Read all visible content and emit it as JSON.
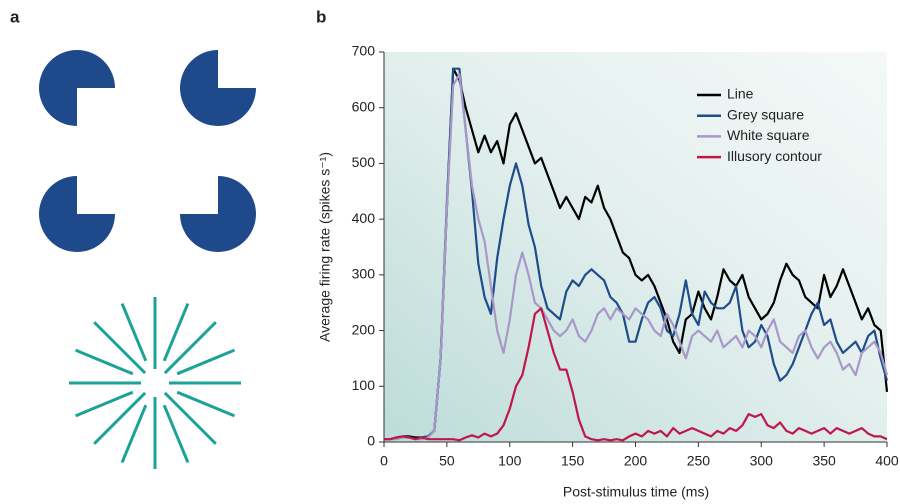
{
  "panel_labels": [
    "a",
    "b"
  ],
  "chart_data": {
    "type": "line",
    "xlabel": "Post-stimulus time (ms)",
    "ylabel": "Average firing rate (spikes s⁻¹)",
    "xlim": [
      0,
      400
    ],
    "xticks": [
      0,
      50,
      100,
      150,
      200,
      250,
      300,
      350,
      400
    ],
    "ylim": [
      0,
      700
    ],
    "yticks": [
      0,
      100,
      200,
      300,
      400,
      500,
      600,
      700
    ],
    "legend": "upper right",
    "x": [
      0,
      5,
      10,
      15,
      20,
      25,
      30,
      35,
      40,
      45,
      50,
      55,
      60,
      65,
      70,
      75,
      80,
      85,
      90,
      95,
      100,
      105,
      110,
      115,
      120,
      125,
      130,
      135,
      140,
      145,
      150,
      155,
      160,
      165,
      170,
      175,
      180,
      185,
      190,
      195,
      200,
      205,
      210,
      215,
      220,
      225,
      230,
      235,
      240,
      245,
      250,
      255,
      260,
      265,
      270,
      275,
      280,
      285,
      290,
      295,
      300,
      305,
      310,
      315,
      320,
      325,
      330,
      335,
      340,
      345,
      350,
      355,
      360,
      365,
      370,
      375,
      380,
      385,
      390,
      395,
      400
    ],
    "series": [
      {
        "name": "Line",
        "color": "#000000",
        "values": [
          5,
          5,
          8,
          10,
          10,
          8,
          8,
          10,
          20,
          150,
          420,
          670,
          650,
          600,
          560,
          520,
          550,
          520,
          540,
          500,
          570,
          590,
          560,
          530,
          500,
          510,
          480,
          450,
          420,
          440,
          420,
          400,
          440,
          430,
          460,
          420,
          400,
          370,
          340,
          330,
          300,
          290,
          300,
          280,
          250,
          220,
          180,
          160,
          220,
          230,
          270,
          240,
          220,
          260,
          310,
          290,
          280,
          300,
          260,
          240,
          220,
          230,
          250,
          290,
          320,
          300,
          290,
          260,
          250,
          240,
          300,
          260,
          280,
          310,
          280,
          250,
          220,
          240,
          210,
          200,
          90
        ]
      },
      {
        "name": "Grey square",
        "color": "#1f4c8a",
        "values": [
          5,
          5,
          8,
          10,
          8,
          5,
          8,
          10,
          20,
          150,
          430,
          670,
          670,
          560,
          450,
          320,
          260,
          230,
          330,
          400,
          460,
          500,
          460,
          390,
          350,
          280,
          240,
          230,
          220,
          270,
          290,
          280,
          300,
          310,
          300,
          290,
          260,
          250,
          230,
          180,
          180,
          220,
          250,
          260,
          240,
          200,
          190,
          230,
          290,
          230,
          210,
          270,
          250,
          240,
          240,
          250,
          280,
          200,
          170,
          180,
          210,
          190,
          140,
          110,
          120,
          140,
          170,
          200,
          230,
          250,
          210,
          220,
          180,
          160,
          170,
          180,
          160,
          190,
          200,
          150,
          110
        ]
      },
      {
        "name": "White square",
        "color": "#a898c8",
        "values": [
          5,
          5,
          5,
          8,
          8,
          5,
          5,
          8,
          20,
          150,
          420,
          640,
          660,
          560,
          460,
          400,
          360,
          280,
          200,
          160,
          220,
          300,
          340,
          300,
          250,
          240,
          220,
          200,
          190,
          200,
          220,
          190,
          180,
          200,
          230,
          240,
          220,
          240,
          230,
          220,
          240,
          230,
          220,
          200,
          190,
          230,
          210,
          180,
          150,
          190,
          200,
          190,
          180,
          200,
          170,
          180,
          190,
          170,
          200,
          190,
          170,
          200,
          220,
          180,
          170,
          160,
          190,
          200,
          170,
          150,
          170,
          180,
          160,
          130,
          140,
          120,
          160,
          170,
          180,
          160,
          120
        ]
      },
      {
        "name": "Illusory contour",
        "color": "#c0164a",
        "values": [
          5,
          5,
          8,
          10,
          8,
          5,
          8,
          5,
          5,
          5,
          5,
          5,
          3,
          8,
          12,
          8,
          15,
          10,
          15,
          30,
          60,
          100,
          120,
          170,
          230,
          240,
          200,
          160,
          130,
          130,
          90,
          40,
          10,
          5,
          3,
          5,
          3,
          5,
          3,
          10,
          15,
          10,
          20,
          15,
          20,
          10,
          25,
          15,
          20,
          25,
          20,
          15,
          10,
          20,
          15,
          25,
          20,
          30,
          50,
          45,
          50,
          30,
          25,
          35,
          20,
          15,
          25,
          20,
          15,
          20,
          25,
          15,
          25,
          20,
          15,
          20,
          25,
          15,
          10,
          10,
          5
        ]
      }
    ]
  }
}
